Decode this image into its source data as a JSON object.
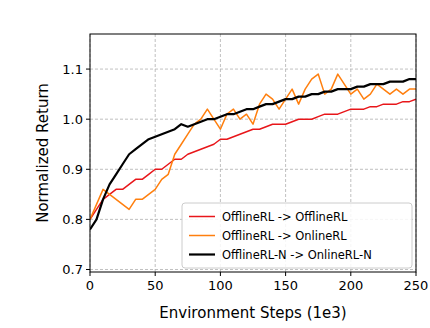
{
  "chart_data": {
    "type": "line",
    "x_label": "Environment Steps (1e3)",
    "y_label": "Normalized Return",
    "x": [
      0,
      5,
      10,
      15,
      20,
      25,
      30,
      35,
      40,
      45,
      50,
      55,
      60,
      65,
      70,
      75,
      80,
      85,
      90,
      95,
      100,
      105,
      110,
      115,
      120,
      125,
      130,
      135,
      140,
      145,
      150,
      155,
      160,
      165,
      170,
      175,
      180,
      185,
      190,
      195,
      200,
      205,
      210,
      215,
      220,
      225,
      230,
      235,
      240,
      245,
      250
    ],
    "series": [
      {
        "name": "OfflineRL -> OfflineRL",
        "color": "#e8161a",
        "values": [
          0.8,
          0.82,
          0.84,
          0.85,
          0.86,
          0.86,
          0.87,
          0.88,
          0.88,
          0.89,
          0.9,
          0.9,
          0.91,
          0.92,
          0.92,
          0.93,
          0.935,
          0.94,
          0.945,
          0.95,
          0.96,
          0.96,
          0.965,
          0.97,
          0.975,
          0.98,
          0.98,
          0.985,
          0.99,
          0.99,
          0.99,
          0.995,
          1.0,
          1.0,
          1.0,
          1.005,
          1.01,
          1.01,
          1.01,
          1.015,
          1.02,
          1.02,
          1.02,
          1.025,
          1.025,
          1.03,
          1.03,
          1.03,
          1.035,
          1.035,
          1.04
        ]
      },
      {
        "name": "OfflineRL -> OnlineRL",
        "color": "#ff7f0e",
        "values": [
          0.8,
          0.83,
          0.86,
          0.85,
          0.84,
          0.83,
          0.82,
          0.84,
          0.84,
          0.85,
          0.86,
          0.88,
          0.89,
          0.93,
          0.95,
          0.97,
          0.99,
          1.0,
          1.02,
          1.0,
          0.98,
          1.01,
          1.02,
          1.0,
          1.01,
          0.99,
          1.03,
          1.05,
          1.04,
          1.02,
          1.04,
          1.06,
          1.03,
          1.06,
          1.08,
          1.09,
          1.05,
          1.06,
          1.09,
          1.07,
          1.05,
          1.06,
          1.04,
          1.05,
          1.07,
          1.06,
          1.05,
          1.06,
          1.05,
          1.06,
          1.06
        ]
      },
      {
        "name": "OfflineRL-N -> OnlineRL-N",
        "color": "#000000",
        "values": [
          0.78,
          0.8,
          0.84,
          0.87,
          0.89,
          0.91,
          0.93,
          0.94,
          0.95,
          0.96,
          0.965,
          0.97,
          0.975,
          0.98,
          0.99,
          0.985,
          0.99,
          0.995,
          1.0,
          1.0,
          1.005,
          1.01,
          1.01,
          1.015,
          1.02,
          1.02,
          1.025,
          1.03,
          1.03,
          1.035,
          1.04,
          1.04,
          1.045,
          1.045,
          1.05,
          1.05,
          1.055,
          1.055,
          1.06,
          1.06,
          1.06,
          1.065,
          1.065,
          1.07,
          1.07,
          1.07,
          1.075,
          1.075,
          1.075,
          1.08,
          1.08
        ]
      }
    ],
    "xlim": [
      0,
      250
    ],
    "ylim": [
      0.695,
      1.17
    ],
    "xticks": [
      0,
      50,
      100,
      150,
      200,
      250
    ],
    "yticks": [
      0.7,
      0.8,
      0.9,
      {
        "value": 1,
        "label": "1.0"
      },
      1.1
    ],
    "grid": true,
    "legend": "lower right"
  }
}
